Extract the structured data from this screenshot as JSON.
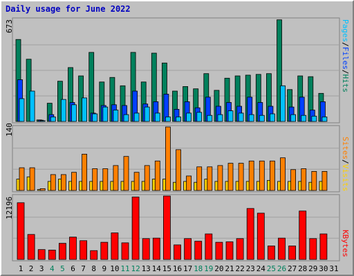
{
  "title": "Daily usage for June 2022",
  "colors": {
    "hits": "#00805c",
    "files": "#0040ff",
    "pages": "#00c0ff",
    "visits": "#ffd000",
    "sites": "#ff8000",
    "kbytes": "#ff0000",
    "weekend": "#00805c",
    "weekday": "#000000",
    "panel_bg": "#c0c0c0"
  },
  "labels": {
    "pages": "Pages",
    "files": "Files",
    "hits": "Hits",
    "sites": "Sites",
    "visits": "Visits",
    "kbytes": "KBytes",
    "slash": "/"
  },
  "chart_data": [
    {
      "type": "bar",
      "title": "Hits / Files / Pages",
      "ymax_label": "673",
      "ylim": [
        0,
        673
      ],
      "categories": [
        "1",
        "2",
        "3",
        "4",
        "5",
        "6",
        "7",
        "8",
        "9",
        "10",
        "11",
        "12",
        "13",
        "14",
        "15",
        "16",
        "17",
        "18",
        "19",
        "20",
        "21",
        "22",
        "23",
        "24",
        "25",
        "26",
        "27",
        "28",
        "29",
        "30",
        "31"
      ],
      "weekend_days": [
        4,
        5,
        11,
        12,
        18,
        19,
        25,
        26
      ],
      "series": [
        {
          "name": "Hits",
          "values": [
            540,
            410,
            10,
            120,
            265,
            355,
            300,
            455,
            260,
            290,
            235,
            455,
            260,
            450,
            385,
            200,
            230,
            215,
            315,
            205,
            285,
            300,
            305,
            310,
            315,
            670,
            210,
            300,
            295,
            185,
            0
          ]
        },
        {
          "name": "Files",
          "values": [
            275,
            0,
            8,
            45,
            0,
            125,
            0,
            55,
            105,
            110,
            105,
            200,
            115,
            130,
            180,
            80,
            130,
            90,
            160,
            100,
            125,
            100,
            160,
            125,
            100,
            0,
            95,
            160,
            75,
            130,
            0
          ]
        },
        {
          "name": "Pages",
          "values": [
            150,
            200,
            5,
            30,
            145,
            110,
            155,
            50,
            95,
            75,
            45,
            55,
            95,
            55,
            30,
            30,
            55,
            60,
            40,
            45,
            70,
            55,
            45,
            40,
            50,
            235,
            45,
            40,
            35,
            30,
            0
          ]
        }
      ]
    },
    {
      "type": "bar",
      "title": "Sites / Visits",
      "ymax_label": "140",
      "ylim": [
        0,
        140
      ],
      "categories": [
        "1",
        "2",
        "3",
        "4",
        "5",
        "6",
        "7",
        "8",
        "9",
        "10",
        "11",
        "12",
        "13",
        "14",
        "15",
        "16",
        "17",
        "18",
        "19",
        "20",
        "21",
        "22",
        "23",
        "24",
        "25",
        "26",
        "27",
        "28",
        "29",
        "30",
        "31"
      ],
      "weekend_days": [
        4,
        5,
        11,
        12,
        18,
        19,
        25,
        26
      ],
      "series": [
        {
          "name": "Visits",
          "values": [
            25,
            30,
            2,
            20,
            25,
            20,
            20,
            20,
            20,
            20,
            20,
            20,
            20,
            25,
            25,
            18,
            20,
            18,
            25,
            20,
            20,
            20,
            20,
            20,
            22,
            20,
            20,
            20,
            18,
            20,
            0
          ]
        },
        {
          "name": "Sites",
          "values": [
            50,
            50,
            4,
            35,
            35,
            40,
            80,
            48,
            48,
            55,
            75,
            40,
            55,
            65,
            140,
            90,
            32,
            52,
            52,
            55,
            60,
            60,
            65,
            65,
            65,
            72,
            46,
            48,
            42,
            42,
            0
          ]
        }
      ]
    },
    {
      "type": "bar",
      "title": "KBytes",
      "ymax_label": "12196",
      "ylim": [
        0,
        12196
      ],
      "categories": [
        "1",
        "2",
        "3",
        "4",
        "5",
        "6",
        "7",
        "8",
        "9",
        "10",
        "11",
        "12",
        "13",
        "14",
        "15",
        "16",
        "17",
        "18",
        "19",
        "20",
        "21",
        "22",
        "23",
        "24",
        "25",
        "26",
        "27",
        "28",
        "29",
        "30",
        "31"
      ],
      "weekend_days": [
        4,
        5,
        11,
        12,
        18,
        19,
        25,
        26
      ],
      "series": [
        {
          "name": "KBytes",
          "values": [
            10900,
            4800,
            1900,
            1800,
            3100,
            4300,
            3600,
            1700,
            3300,
            5100,
            3200,
            12000,
            4000,
            4100,
            12200,
            2800,
            4000,
            3500,
            4900,
            3300,
            3400,
            4000,
            9800,
            8900,
            2600,
            4100,
            2600,
            9300,
            4000,
            4900,
            0
          ]
        }
      ]
    }
  ]
}
